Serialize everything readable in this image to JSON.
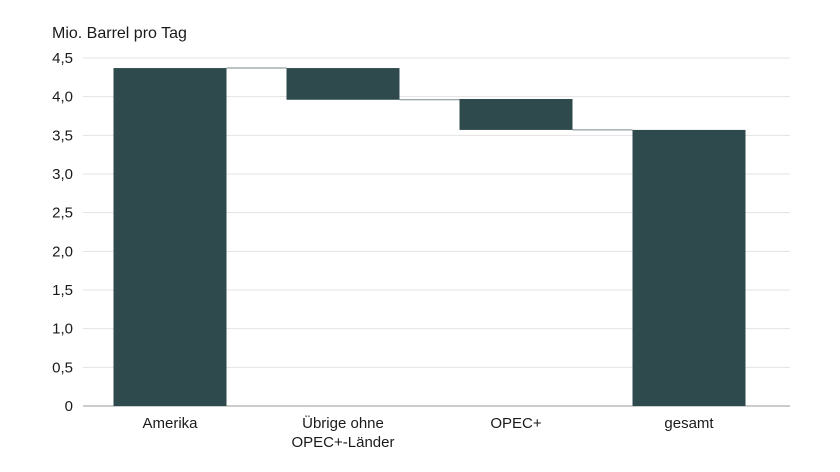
{
  "chart_data": {
    "type": "waterfall",
    "ylabel": "Mio. Barrel pro Tag",
    "ylim": [
      0,
      4.5
    ],
    "yticks": [
      "0",
      "0,5",
      "1,0",
      "1,5",
      "2,0",
      "2,5",
      "3,0",
      "3,5",
      "4,0",
      "4,5"
    ],
    "ytick_values": [
      0,
      0.5,
      1.0,
      1.5,
      2.0,
      2.5,
      3.0,
      3.5,
      4.0,
      4.5
    ],
    "grid": true,
    "bar_color": "#2f4a4c",
    "categories": [
      "Amerika",
      "Übrige ohne\nOPEC+-Länder",
      "OPEC+",
      "gesamt"
    ],
    "values": [
      4.37,
      -0.41,
      -0.4,
      3.57
    ],
    "bars": [
      {
        "category": "Amerika",
        "start": 0,
        "end": 4.37
      },
      {
        "category": "Übrige ohne\nOPEC+-Länder",
        "start": 4.37,
        "end": 3.96
      },
      {
        "category": "OPEC+",
        "start": 3.97,
        "end": 3.57
      },
      {
        "category": "gesamt",
        "start": 0,
        "end": 3.57
      }
    ]
  }
}
